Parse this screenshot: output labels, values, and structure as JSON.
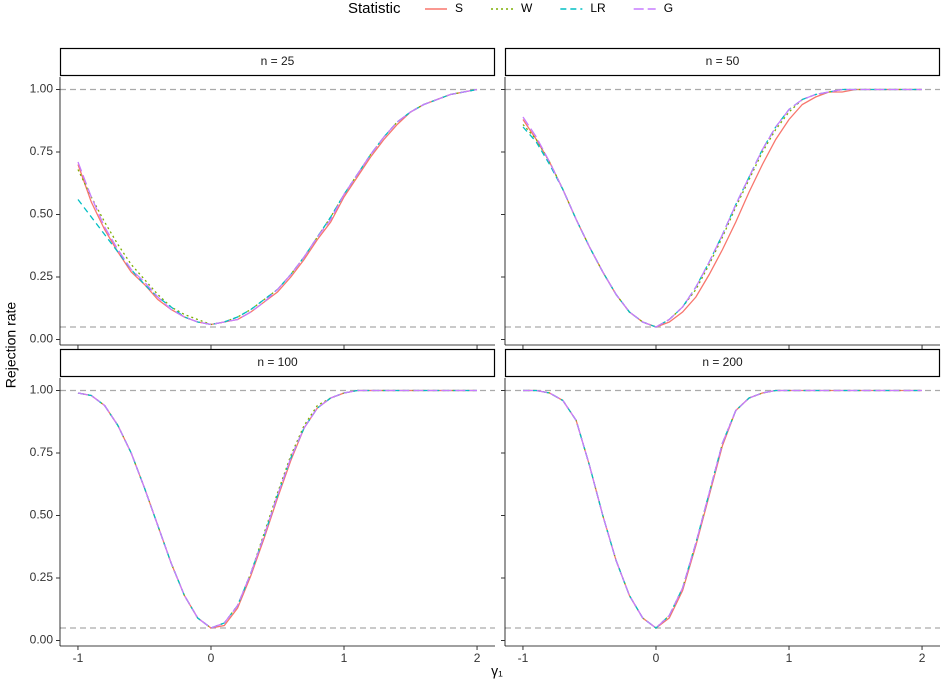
{
  "legend_title": "Statistic",
  "x_label": "γ₁",
  "y_label": "Rejection rate",
  "chart_data": [
    {
      "type": "line",
      "title": "n = 25",
      "x": [
        -1,
        -0.9,
        -0.8,
        -0.7,
        -0.6,
        -0.5,
        -0.4,
        -0.3,
        -0.2,
        -0.1,
        0,
        0.1,
        0.2,
        0.3,
        0.4,
        0.5,
        0.6,
        0.7,
        0.8,
        0.9,
        1,
        1.1,
        1.2,
        1.3,
        1.4,
        1.5,
        1.6,
        1.7,
        1.8,
        1.9,
        2
      ],
      "series": [
        {
          "name": "S",
          "color": "#F8766D",
          "linetype": "solid",
          "values": [
            0.7,
            0.55,
            0.44,
            0.35,
            0.27,
            0.22,
            0.16,
            0.12,
            0.09,
            0.07,
            0.06,
            0.07,
            0.08,
            0.11,
            0.15,
            0.19,
            0.25,
            0.32,
            0.4,
            0.47,
            0.57,
            0.65,
            0.73,
            0.8,
            0.86,
            0.91,
            0.94,
            0.96,
            0.98,
            0.99,
            1.0
          ]
        },
        {
          "name": "W",
          "color": "#7CAE00",
          "linetype": "dotted",
          "values": [
            0.68,
            0.57,
            0.47,
            0.38,
            0.3,
            0.24,
            0.18,
            0.13,
            0.1,
            0.08,
            0.06,
            0.07,
            0.09,
            0.12,
            0.16,
            0.2,
            0.26,
            0.33,
            0.41,
            0.49,
            0.58,
            0.66,
            0.74,
            0.81,
            0.87,
            0.91,
            0.94,
            0.96,
            0.98,
            0.99,
            1.0
          ]
        },
        {
          "name": "LR",
          "color": "#00BFC4",
          "linetype": "dashed",
          "values": [
            0.56,
            0.49,
            0.42,
            0.35,
            0.28,
            0.22,
            0.17,
            0.13,
            0.09,
            0.07,
            0.06,
            0.07,
            0.09,
            0.12,
            0.16,
            0.2,
            0.26,
            0.33,
            0.41,
            0.49,
            0.58,
            0.66,
            0.74,
            0.81,
            0.87,
            0.91,
            0.94,
            0.96,
            0.98,
            0.99,
            1.0
          ]
        },
        {
          "name": "G",
          "color": "#C77CFF",
          "linetype": "longdash",
          "values": [
            0.71,
            0.57,
            0.45,
            0.36,
            0.28,
            0.23,
            0.17,
            0.12,
            0.09,
            0.07,
            0.06,
            0.07,
            0.08,
            0.11,
            0.15,
            0.2,
            0.26,
            0.33,
            0.41,
            0.48,
            0.58,
            0.66,
            0.74,
            0.81,
            0.87,
            0.91,
            0.94,
            0.96,
            0.98,
            0.99,
            1.0
          ]
        }
      ],
      "xlim": [
        -1.135,
        2.135
      ],
      "ylim": [
        -0.022,
        1.05
      ],
      "xticks": [
        -1,
        0,
        1,
        2
      ],
      "yticks": [
        {
          "value": 0,
          "label": "0.00"
        },
        {
          "value": 0.25,
          "label": "0.25"
        },
        {
          "value": 0.5,
          "label": "0.50"
        },
        {
          "value": 0.75,
          "label": "0.75"
        },
        {
          "value": 1,
          "label": "1.00"
        }
      ],
      "reference_lines": [
        0.05,
        1
      ]
    },
    {
      "type": "line",
      "title": "n = 50",
      "x": [
        -1,
        -0.9,
        -0.8,
        -0.7,
        -0.6,
        -0.5,
        -0.4,
        -0.3,
        -0.2,
        -0.1,
        0,
        0.1,
        0.2,
        0.3,
        0.4,
        0.5,
        0.6,
        0.7,
        0.8,
        0.9,
        1,
        1.1,
        1.2,
        1.3,
        1.4,
        1.5,
        1.6,
        1.7,
        1.8,
        1.9,
        2
      ],
      "series": [
        {
          "name": "S",
          "color": "#F8766D",
          "linetype": "solid",
          "values": [
            0.88,
            0.8,
            0.71,
            0.6,
            0.48,
            0.37,
            0.27,
            0.18,
            0.11,
            0.07,
            0.05,
            0.07,
            0.11,
            0.17,
            0.26,
            0.36,
            0.47,
            0.59,
            0.7,
            0.8,
            0.88,
            0.94,
            0.97,
            0.99,
            0.99,
            1.0,
            1.0,
            1.0,
            1.0,
            1.0,
            1.0
          ]
        },
        {
          "name": "W",
          "color": "#7CAE00",
          "linetype": "dotted",
          "values": [
            0.86,
            0.8,
            0.71,
            0.6,
            0.48,
            0.37,
            0.27,
            0.18,
            0.11,
            0.07,
            0.05,
            0.08,
            0.13,
            0.2,
            0.3,
            0.41,
            0.53,
            0.64,
            0.75,
            0.84,
            0.91,
            0.96,
            0.98,
            0.99,
            1.0,
            1.0,
            1.0,
            1.0,
            1.0,
            1.0,
            1.0
          ]
        },
        {
          "name": "LR",
          "color": "#00BFC4",
          "linetype": "dashed",
          "values": [
            0.85,
            0.79,
            0.7,
            0.6,
            0.48,
            0.37,
            0.27,
            0.18,
            0.11,
            0.07,
            0.05,
            0.08,
            0.13,
            0.21,
            0.31,
            0.42,
            0.54,
            0.65,
            0.76,
            0.85,
            0.92,
            0.96,
            0.98,
            0.99,
            1.0,
            1.0,
            1.0,
            1.0,
            1.0,
            1.0,
            1.0
          ]
        },
        {
          "name": "G",
          "color": "#C77CFF",
          "linetype": "longdash",
          "values": [
            0.89,
            0.81,
            0.71,
            0.6,
            0.48,
            0.37,
            0.27,
            0.18,
            0.11,
            0.07,
            0.05,
            0.08,
            0.13,
            0.21,
            0.31,
            0.42,
            0.54,
            0.65,
            0.76,
            0.85,
            0.92,
            0.96,
            0.98,
            0.99,
            1.0,
            1.0,
            1.0,
            1.0,
            1.0,
            1.0,
            1.0
          ]
        }
      ],
      "xlim": [
        -1.135,
        2.135
      ],
      "ylim": [
        -0.022,
        1.05
      ],
      "xticks": [
        -1,
        0,
        1,
        2
      ],
      "yticks": [
        {
          "value": 0,
          "label": "0.00"
        },
        {
          "value": 0.25,
          "label": "0.25"
        },
        {
          "value": 0.5,
          "label": "0.50"
        },
        {
          "value": 0.75,
          "label": "0.75"
        },
        {
          "value": 1,
          "label": "1.00"
        }
      ],
      "reference_lines": [
        0.05,
        1
      ]
    },
    {
      "type": "line",
      "title": "n = 100",
      "x": [
        -1,
        -0.9,
        -0.8,
        -0.7,
        -0.6,
        -0.5,
        -0.4,
        -0.3,
        -0.2,
        -0.1,
        0,
        0.1,
        0.2,
        0.3,
        0.4,
        0.5,
        0.6,
        0.7,
        0.8,
        0.9,
        1,
        1.1,
        1.2,
        1.3,
        1.4,
        1.5,
        1.6,
        1.7,
        1.8,
        1.9,
        2
      ],
      "series": [
        {
          "name": "S",
          "color": "#F8766D",
          "linetype": "solid",
          "values": [
            0.99,
            0.98,
            0.94,
            0.86,
            0.75,
            0.61,
            0.46,
            0.31,
            0.18,
            0.09,
            0.05,
            0.06,
            0.13,
            0.26,
            0.41,
            0.57,
            0.72,
            0.85,
            0.93,
            0.97,
            0.99,
            1.0,
            1.0,
            1.0,
            1.0,
            1.0,
            1.0,
            1.0,
            1.0,
            1.0,
            1.0
          ]
        },
        {
          "name": "W",
          "color": "#7CAE00",
          "linetype": "dotted",
          "values": [
            0.99,
            0.98,
            0.94,
            0.86,
            0.75,
            0.61,
            0.46,
            0.31,
            0.18,
            0.09,
            0.05,
            0.07,
            0.14,
            0.27,
            0.43,
            0.59,
            0.74,
            0.86,
            0.94,
            0.97,
            0.99,
            1.0,
            1.0,
            1.0,
            1.0,
            1.0,
            1.0,
            1.0,
            1.0,
            1.0,
            1.0
          ]
        },
        {
          "name": "LR",
          "color": "#00BFC4",
          "linetype": "dashed",
          "values": [
            0.99,
            0.98,
            0.94,
            0.86,
            0.75,
            0.61,
            0.46,
            0.31,
            0.18,
            0.09,
            0.05,
            0.07,
            0.14,
            0.27,
            0.42,
            0.58,
            0.73,
            0.85,
            0.93,
            0.97,
            0.99,
            1.0,
            1.0,
            1.0,
            1.0,
            1.0,
            1.0,
            1.0,
            1.0,
            1.0,
            1.0
          ]
        },
        {
          "name": "G",
          "color": "#C77CFF",
          "linetype": "longdash",
          "values": [
            0.99,
            0.98,
            0.94,
            0.86,
            0.75,
            0.61,
            0.46,
            0.31,
            0.18,
            0.09,
            0.05,
            0.07,
            0.14,
            0.27,
            0.42,
            0.58,
            0.73,
            0.85,
            0.93,
            0.97,
            0.99,
            1.0,
            1.0,
            1.0,
            1.0,
            1.0,
            1.0,
            1.0,
            1.0,
            1.0,
            1.0
          ]
        }
      ],
      "xlim": [
        -1.135,
        2.135
      ],
      "ylim": [
        -0.022,
        1.05
      ],
      "xticks": [
        -1,
        0,
        1,
        2
      ],
      "yticks": [
        {
          "value": 0,
          "label": "0.00"
        },
        {
          "value": 0.25,
          "label": "0.25"
        },
        {
          "value": 0.5,
          "label": "0.50"
        },
        {
          "value": 0.75,
          "label": "0.75"
        },
        {
          "value": 1,
          "label": "1.00"
        }
      ],
      "reference_lines": [
        0.05,
        1
      ]
    },
    {
      "type": "line",
      "title": "n = 200",
      "x": [
        -1,
        -0.9,
        -0.8,
        -0.7,
        -0.6,
        -0.5,
        -0.4,
        -0.3,
        -0.2,
        -0.1,
        0,
        0.1,
        0.2,
        0.3,
        0.4,
        0.5,
        0.6,
        0.7,
        0.8,
        0.9,
        1,
        1.1,
        1.2,
        1.3,
        1.4,
        1.5,
        1.6,
        1.7,
        1.8,
        1.9,
        2
      ],
      "series": [
        {
          "name": "S",
          "color": "#F8766D",
          "linetype": "solid",
          "values": [
            1.0,
            1.0,
            0.99,
            0.96,
            0.88,
            0.7,
            0.5,
            0.32,
            0.18,
            0.09,
            0.05,
            0.09,
            0.2,
            0.38,
            0.58,
            0.78,
            0.92,
            0.97,
            0.99,
            1.0,
            1.0,
            1.0,
            1.0,
            1.0,
            1.0,
            1.0,
            1.0,
            1.0,
            1.0,
            1.0,
            1.0
          ]
        },
        {
          "name": "W",
          "color": "#7CAE00",
          "linetype": "dotted",
          "values": [
            1.0,
            1.0,
            0.99,
            0.96,
            0.88,
            0.7,
            0.5,
            0.32,
            0.18,
            0.09,
            0.05,
            0.1,
            0.21,
            0.39,
            0.59,
            0.79,
            0.92,
            0.97,
            0.99,
            1.0,
            1.0,
            1.0,
            1.0,
            1.0,
            1.0,
            1.0,
            1.0,
            1.0,
            1.0,
            1.0,
            1.0
          ]
        },
        {
          "name": "LR",
          "color": "#00BFC4",
          "linetype": "dashed",
          "values": [
            1.0,
            1.0,
            0.99,
            0.96,
            0.88,
            0.7,
            0.5,
            0.32,
            0.18,
            0.09,
            0.05,
            0.1,
            0.21,
            0.39,
            0.59,
            0.79,
            0.92,
            0.97,
            0.99,
            1.0,
            1.0,
            1.0,
            1.0,
            1.0,
            1.0,
            1.0,
            1.0,
            1.0,
            1.0,
            1.0,
            1.0
          ]
        },
        {
          "name": "G",
          "color": "#C77CFF",
          "linetype": "longdash",
          "values": [
            1.0,
            1.0,
            0.99,
            0.96,
            0.88,
            0.7,
            0.5,
            0.32,
            0.18,
            0.09,
            0.05,
            0.1,
            0.21,
            0.39,
            0.59,
            0.79,
            0.92,
            0.97,
            0.99,
            1.0,
            1.0,
            1.0,
            1.0,
            1.0,
            1.0,
            1.0,
            1.0,
            1.0,
            1.0,
            1.0,
            1.0
          ]
        }
      ],
      "xlim": [
        -1.135,
        2.135
      ],
      "ylim": [
        -0.022,
        1.05
      ],
      "xticks": [
        -1,
        0,
        1,
        2
      ],
      "yticks": [
        {
          "value": 0,
          "label": "0.00"
        },
        {
          "value": 0.25,
          "label": "0.25"
        },
        {
          "value": 0.5,
          "label": "0.50"
        },
        {
          "value": 0.75,
          "label": "0.75"
        },
        {
          "value": 1,
          "label": "1.00"
        }
      ],
      "reference_lines": [
        0.05,
        1
      ]
    }
  ]
}
